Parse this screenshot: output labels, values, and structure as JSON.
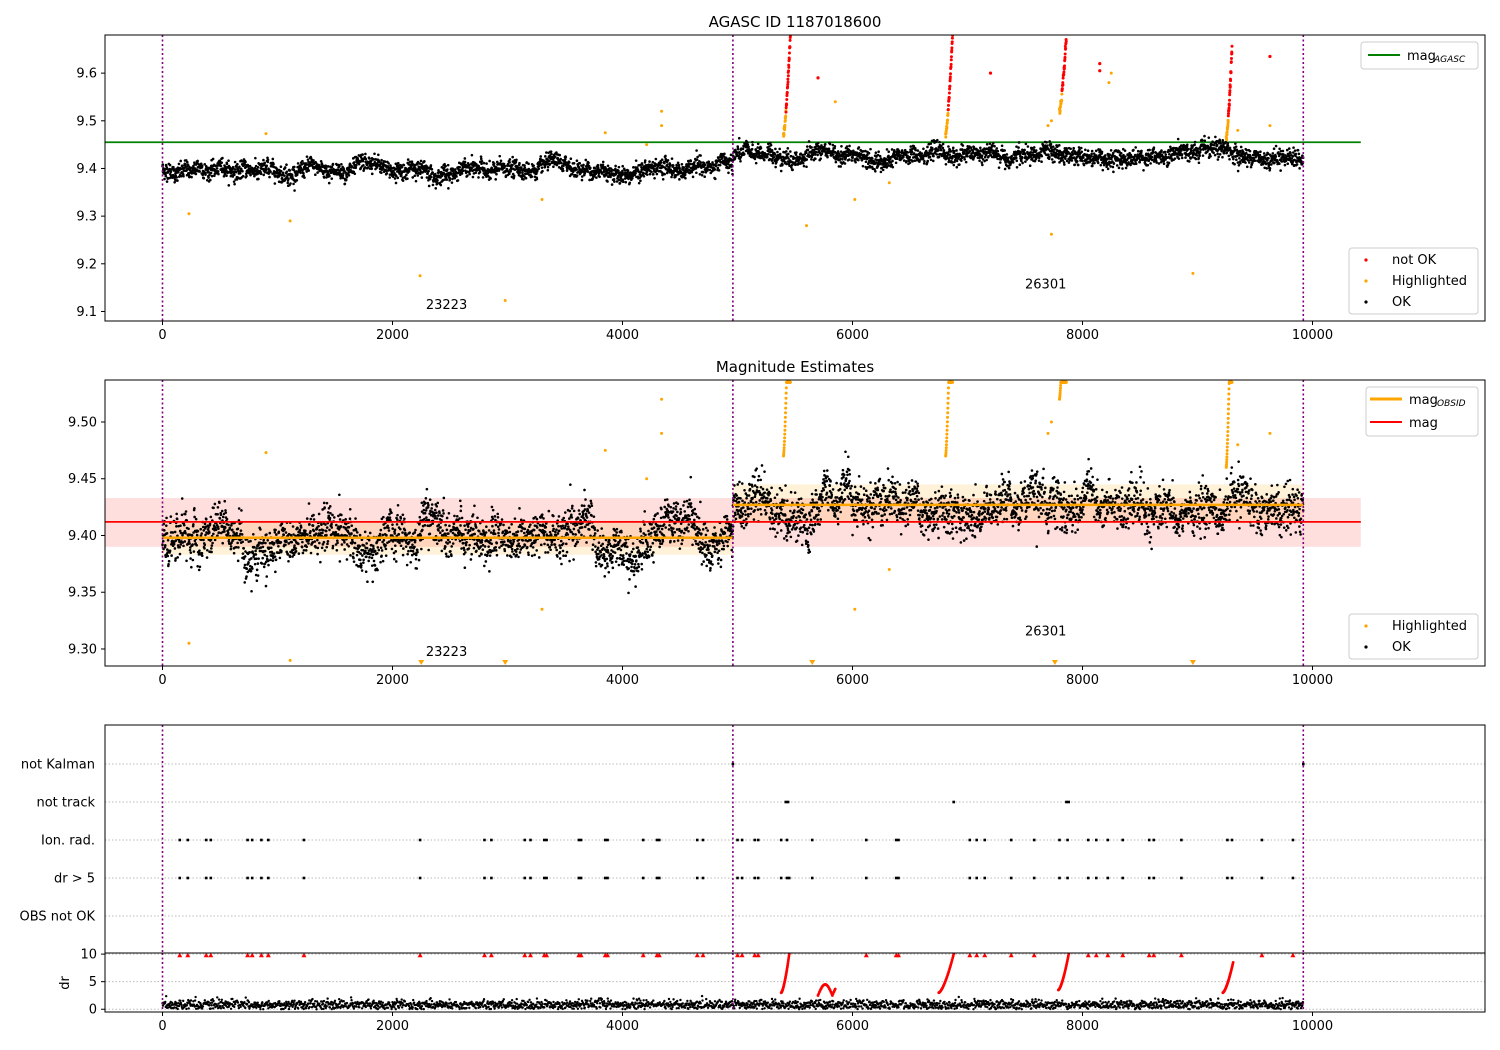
{
  "chart_data": [
    {
      "type": "scatter",
      "title": "AGASC ID 1187018600",
      "xlabel": "",
      "ylabel": "",
      "xlim": [
        -500,
        11500
      ],
      "ylim": [
        9.08,
        9.68
      ],
      "xticks": [
        0,
        2000,
        4000,
        6000,
        8000,
        10000
      ],
      "xticklabels": [
        "0",
        "2000",
        "4000",
        "6000",
        "8000",
        "10000"
      ],
      "yticks": [
        9.1,
        9.2,
        9.3,
        9.4,
        9.5,
        9.6
      ],
      "yticklabels": [
        "9.1",
        "9.2",
        "9.3",
        "9.4",
        "9.5",
        "9.6"
      ],
      "obs_boundaries": [
        0,
        4960,
        9920
      ],
      "obs_labels": [
        {
          "obsid": "23223",
          "x": 2470,
          "y": 9.105
        },
        {
          "obsid": "26301",
          "x": 7680,
          "y": 9.148
        }
      ],
      "hlines": [
        {
          "name": "mag_AGASC",
          "y": 9.455,
          "x_range": [
            -500,
            10420
          ],
          "color": "#008000"
        }
      ],
      "ok_segments": [
        {
          "x": [
            0,
            4960
          ],
          "mean": 9.397,
          "spread": 0.016
        },
        {
          "x": [
            4960,
            9920
          ],
          "mean": 9.427,
          "spread": 0.016
        }
      ],
      "not_ok_points": [
        {
          "x": [
            5400,
            5460
          ],
          "y": [
            9.47,
            9.68
          ]
        },
        {
          "x": [
            6810,
            6870
          ],
          "y": [
            9.47,
            9.68
          ]
        },
        {
          "x": [
            7800,
            7860
          ],
          "y": [
            9.52,
            9.68
          ]
        },
        {
          "x": [
            9250,
            9300
          ],
          "y": [
            9.46,
            9.655
          ]
        }
      ],
      "not_ok_single": [
        [
          5700,
          9.59
        ],
        [
          7200,
          9.6
        ],
        [
          8150,
          9.62
        ],
        [
          8150,
          9.605
        ],
        [
          9630,
          9.635
        ]
      ],
      "highlighted_points": [
        [
          230,
          9.305
        ],
        [
          900,
          9.473
        ],
        [
          1110,
          9.29
        ],
        [
          2240,
          9.175
        ],
        [
          2980,
          9.123
        ],
        [
          4340,
          9.52
        ],
        [
          4340,
          9.49
        ],
        [
          3850,
          9.475
        ],
        [
          5600,
          9.28
        ],
        [
          5850,
          9.54
        ],
        [
          6020,
          9.335
        ],
        [
          6320,
          9.37
        ],
        [
          7730,
          9.262
        ],
        [
          8960,
          9.18
        ],
        [
          8250,
          9.6
        ],
        [
          8230,
          9.58
        ],
        [
          7700,
          9.49
        ],
        [
          7730,
          9.5
        ],
        [
          3300,
          9.335
        ],
        [
          4210,
          9.45
        ],
        [
          9350,
          9.48
        ],
        [
          9630,
          9.49
        ]
      ],
      "legend": {
        "entries": [
          "not OK",
          "Highlighted",
          "OK"
        ],
        "line_entries": [
          "mag"
        ],
        "line_subscript": "AGASC",
        "placement": "top-right / bottom-right"
      },
      "colors": {
        "ok": "#000000",
        "highlighted": "#ffa500",
        "not_ok": "#ff0000",
        "mag_line": "#008000",
        "obs_lines": "#800080"
      }
    },
    {
      "type": "scatter",
      "title": "Magnitude Estimates",
      "xlabel": "",
      "ylabel": "",
      "xlim": [
        -500,
        11500
      ],
      "ylim": [
        9.285,
        9.537
      ],
      "xticks": [
        0,
        2000,
        4000,
        6000,
        8000,
        10000
      ],
      "xticklabels": [
        "0",
        "2000",
        "4000",
        "6000",
        "8000",
        "10000"
      ],
      "yticks": [
        9.3,
        9.35,
        9.4,
        9.45,
        9.5
      ],
      "yticklabels": [
        "9.30",
        "9.35",
        "9.40",
        "9.45",
        "9.50"
      ],
      "obs_boundaries": [
        0,
        4960,
        9920
      ],
      "obs_labels": [
        {
          "obsid": "23223",
          "x": 2470,
          "y": 9.294
        },
        {
          "obsid": "26301",
          "x": 7680,
          "y": 9.312
        }
      ],
      "mag": {
        "value": 9.412,
        "band": [
          9.39,
          9.433
        ],
        "x_range": [
          -500,
          10420
        ],
        "color": "#ff0000"
      },
      "mag_obsid": [
        {
          "x": [
            0,
            4960
          ],
          "value": 9.398,
          "band": [
            9.383,
            9.413
          ],
          "color": "#ffa500"
        },
        {
          "x": [
            4960,
            9920
          ],
          "value": 9.427,
          "band": [
            9.411,
            9.445
          ],
          "color": "#ffa500"
        }
      ],
      "off_scale_markers_x": [
        2250,
        2980,
        5650,
        7760,
        8960
      ],
      "legend": {
        "entries": [
          "Highlighted",
          "OK"
        ],
        "line_entries": [
          "mag",
          "mag"
        ],
        "line_subscripts": [
          "OBSID",
          ""
        ],
        "placement": "top-right / bottom-right"
      }
    },
    {
      "type": "scatter",
      "title": "",
      "categories": [
        "not Kalman",
        "not track",
        "Ion. rad.",
        "dr > 5",
        "OBS not OK"
      ],
      "xlim": [
        -500,
        11500
      ],
      "obs_boundaries": [
        0,
        4960,
        9920
      ],
      "flags": {
        "not Kalman": [
          4960,
          9920
        ],
        "not track": [
          5420,
          5440,
          6880,
          7860,
          7880
        ],
        "Ion. rad.": [
          150,
          220,
          380,
          420,
          740,
          780,
          860,
          920,
          1230,
          2240,
          2800,
          2860,
          3150,
          3200,
          3320,
          3340,
          3620,
          3640,
          3850,
          3870,
          4180,
          4300,
          4320,
          4650,
          4700,
          5000,
          5040,
          5150,
          5180,
          5380,
          5430,
          5650,
          6120,
          6380,
          6400,
          7020,
          7080,
          7150,
          7380,
          7580,
          7800,
          7870,
          8050,
          8120,
          8220,
          8350,
          8580,
          8620,
          8860,
          9260,
          9300,
          9560,
          9830
        ],
        "dr > 5": [
          150,
          220,
          380,
          420,
          740,
          780,
          860,
          920,
          1230,
          2240,
          2800,
          2860,
          3150,
          3200,
          3320,
          3340,
          3620,
          3640,
          3850,
          3870,
          4180,
          4300,
          4320,
          4650,
          4700,
          5000,
          5040,
          5150,
          5180,
          5380,
          5430,
          5450,
          5650,
          6120,
          6380,
          6400,
          7020,
          7080,
          7150,
          7380,
          7580,
          7800,
          7870,
          8050,
          8120,
          8220,
          8350,
          8580,
          8620,
          8860,
          9260,
          9300,
          9560,
          9830
        ],
        "OBS not OK": []
      }
    },
    {
      "type": "scatter",
      "title": "",
      "xlabel": "",
      "ylabel": "dr",
      "xlim": [
        -500,
        11500
      ],
      "ylim": [
        -0.5,
        10.2
      ],
      "xticks": [
        0,
        2000,
        4000,
        6000,
        8000,
        10000
      ],
      "xticklabels": [
        "0",
        "2000",
        "4000",
        "6000",
        "8000",
        "10000"
      ],
      "yticks": [
        0,
        5,
        10
      ],
      "yticklabels": [
        "0",
        "5",
        "10"
      ],
      "obs_boundaries": [
        0,
        4960,
        9920
      ],
      "dr_ramps": [
        {
          "x": [
            5380,
            5450
          ],
          "y": [
            3,
            10
          ]
        },
        {
          "x": [
            6750,
            6880
          ],
          "y": [
            3,
            10
          ]
        },
        {
          "x": [
            7790,
            7880
          ],
          "y": [
            3.5,
            10
          ]
        },
        {
          "x": [
            9220,
            9310
          ],
          "y": [
            3,
            8.5
          ]
        }
      ],
      "dr_bumps": [
        {
          "x": [
            5700,
            5850
          ],
          "y": [
            2.5,
            4.5
          ]
        }
      ],
      "dr_clipped_x": [
        150,
        220,
        380,
        420,
        740,
        780,
        860,
        920,
        1230,
        2240,
        2800,
        2860,
        3150,
        3200,
        3320,
        3340,
        3620,
        3640,
        3850,
        3870,
        4180,
        4300,
        4320,
        4650,
        4700,
        5000,
        5040,
        5150,
        5180,
        6120,
        6380,
        6400,
        7020,
        7080,
        7150,
        7380,
        7580,
        8050,
        8120,
        8220,
        8350,
        8580,
        8620,
        8860,
        9560,
        9830
      ]
    }
  ],
  "text": {
    "title1": "AGASC ID 1187018600",
    "title2": "Magnitude Estimates",
    "legend_not_ok": "not OK",
    "legend_highlighted": "Highlighted",
    "legend_ok": "OK",
    "legend_mag": "mag",
    "sub_agasc": "AGASC",
    "sub_obsid": "OBSID",
    "obs1": "23223",
    "obs2": "26301",
    "flag_not_kalman": "not Kalman",
    "flag_not_track": "not track",
    "flag_ion_rad": "Ion. rad.",
    "flag_dr5": "dr > 5",
    "flag_obs_not_ok": "OBS not OK",
    "dr_label": "dr"
  }
}
